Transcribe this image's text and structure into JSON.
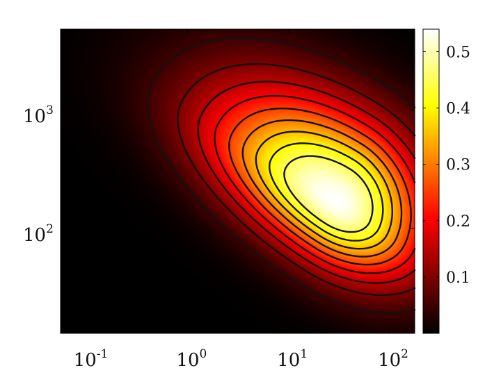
{
  "chart_data": {
    "type": "heatmap",
    "title": "",
    "xlabel": "",
    "ylabel": "",
    "x_scale": "log",
    "y_scale": "log",
    "xlim": [
      0.055,
      180
    ],
    "ylim": [
      13,
      4800
    ],
    "x_ticks": [
      {
        "value": 0.1,
        "base": "10",
        "exp": "-1"
      },
      {
        "value": 1,
        "base": "10",
        "exp": "0"
      },
      {
        "value": 10,
        "base": "10",
        "exp": "1"
      },
      {
        "value": 100,
        "base": "10",
        "exp": "2"
      }
    ],
    "y_ticks": [
      {
        "value": 100,
        "base": "10",
        "exp": "2"
      },
      {
        "value": 1000,
        "base": "10",
        "exp": "3"
      }
    ],
    "colorbar": {
      "colormap": "hot",
      "range": [
        0,
        0.54
      ],
      "ticks": [
        {
          "value": 0.1,
          "label": "0.1"
        },
        {
          "value": 0.2,
          "label": "0.2"
        },
        {
          "value": 0.3,
          "label": "0.3"
        },
        {
          "value": 0.4,
          "label": "0.4"
        },
        {
          "value": 0.5,
          "label": "0.5"
        }
      ]
    },
    "peak": {
      "x": 30,
      "y": 170,
      "value": 0.54
    },
    "contour_levels": [
      0.05,
      0.1,
      0.15,
      0.2,
      0.25,
      0.3,
      0.35,
      0.4,
      0.45
    ],
    "contour_color": "#111111",
    "grid": false,
    "legend": "none"
  }
}
